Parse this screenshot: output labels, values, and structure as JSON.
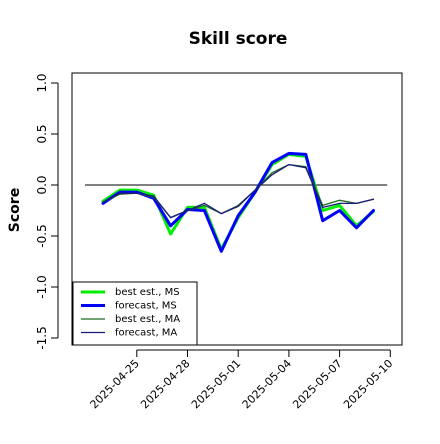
{
  "chart_data": {
    "type": "line",
    "title": "Skill score",
    "xlabel": "",
    "ylabel": "Score",
    "ylim": [
      -1.5,
      1.0
    ],
    "yticks": [
      -1.5,
      -1.0,
      -0.5,
      0.0,
      0.5,
      1.0
    ],
    "ytick_labels": [
      "-1.5",
      "-1.0",
      "-0.5",
      "0.0",
      "0.5",
      "1.0"
    ],
    "x_dates": [
      "2025-04-23",
      "2025-04-24",
      "2025-04-25",
      "2025-04-26",
      "2025-04-27",
      "2025-04-28",
      "2025-04-29",
      "2025-04-30",
      "2025-05-01",
      "2025-05-02",
      "2025-05-03",
      "2025-05-04",
      "2025-05-05",
      "2025-05-06",
      "2025-05-07",
      "2025-05-08",
      "2025-05-09",
      "2025-05-10",
      "2025-05-11"
    ],
    "xticks": [
      {
        "date": "2025-04-25",
        "label": "2025-04-25",
        "color": "#000000"
      },
      {
        "date": "2025-04-28",
        "label": "2025-04-28",
        "color": "#000000"
      },
      {
        "date": "2025-05-01",
        "label": "2025-05-01",
        "color": "#2e8b20"
      },
      {
        "date": "2025-05-04",
        "label": "2025-05-04",
        "color": "#000000"
      },
      {
        "date": "2025-05-07",
        "label": "2025-05-07",
        "color": "#000000"
      },
      {
        "date": "2025-05-10",
        "label": "2025-05-10",
        "color": "#000000"
      }
    ],
    "reference_line": 0.0,
    "grid": false,
    "legend_position": "bottom-left",
    "series": [
      {
        "name": "best est., MS",
        "color": "#00ee00",
        "width": 3,
        "values": [
          -0.16,
          -0.05,
          -0.05,
          -0.1,
          -0.48,
          -0.22,
          -0.22,
          -0.63,
          -0.32,
          -0.07,
          0.2,
          0.3,
          0.28,
          -0.25,
          -0.2,
          -0.4,
          -0.26,
          null,
          null
        ]
      },
      {
        "name": "forecast, MS",
        "color": "#0000ff",
        "width": 3,
        "values": [
          -0.18,
          -0.07,
          -0.07,
          -0.13,
          -0.4,
          -0.24,
          -0.25,
          -0.65,
          -0.3,
          -0.07,
          0.22,
          0.31,
          0.3,
          -0.35,
          -0.25,
          -0.42,
          -0.25,
          null,
          null
        ]
      },
      {
        "name": "best est., MA",
        "color": "#1f6a1f",
        "width": 1.3,
        "values": [
          -0.17,
          -0.09,
          -0.08,
          -0.12,
          -0.32,
          -0.25,
          -0.2,
          -0.28,
          -0.2,
          -0.05,
          0.12,
          0.2,
          0.18,
          -0.2,
          -0.15,
          -0.18,
          -0.14,
          null,
          null
        ]
      },
      {
        "name": "forecast, MA",
        "color": "#1a1a7a",
        "width": 1.3,
        "values": [
          -0.17,
          -0.08,
          -0.08,
          -0.11,
          -0.32,
          -0.25,
          -0.18,
          -0.28,
          -0.21,
          -0.05,
          0.1,
          0.2,
          0.17,
          -0.22,
          -0.18,
          -0.18,
          -0.14,
          null,
          null
        ]
      }
    ]
  }
}
